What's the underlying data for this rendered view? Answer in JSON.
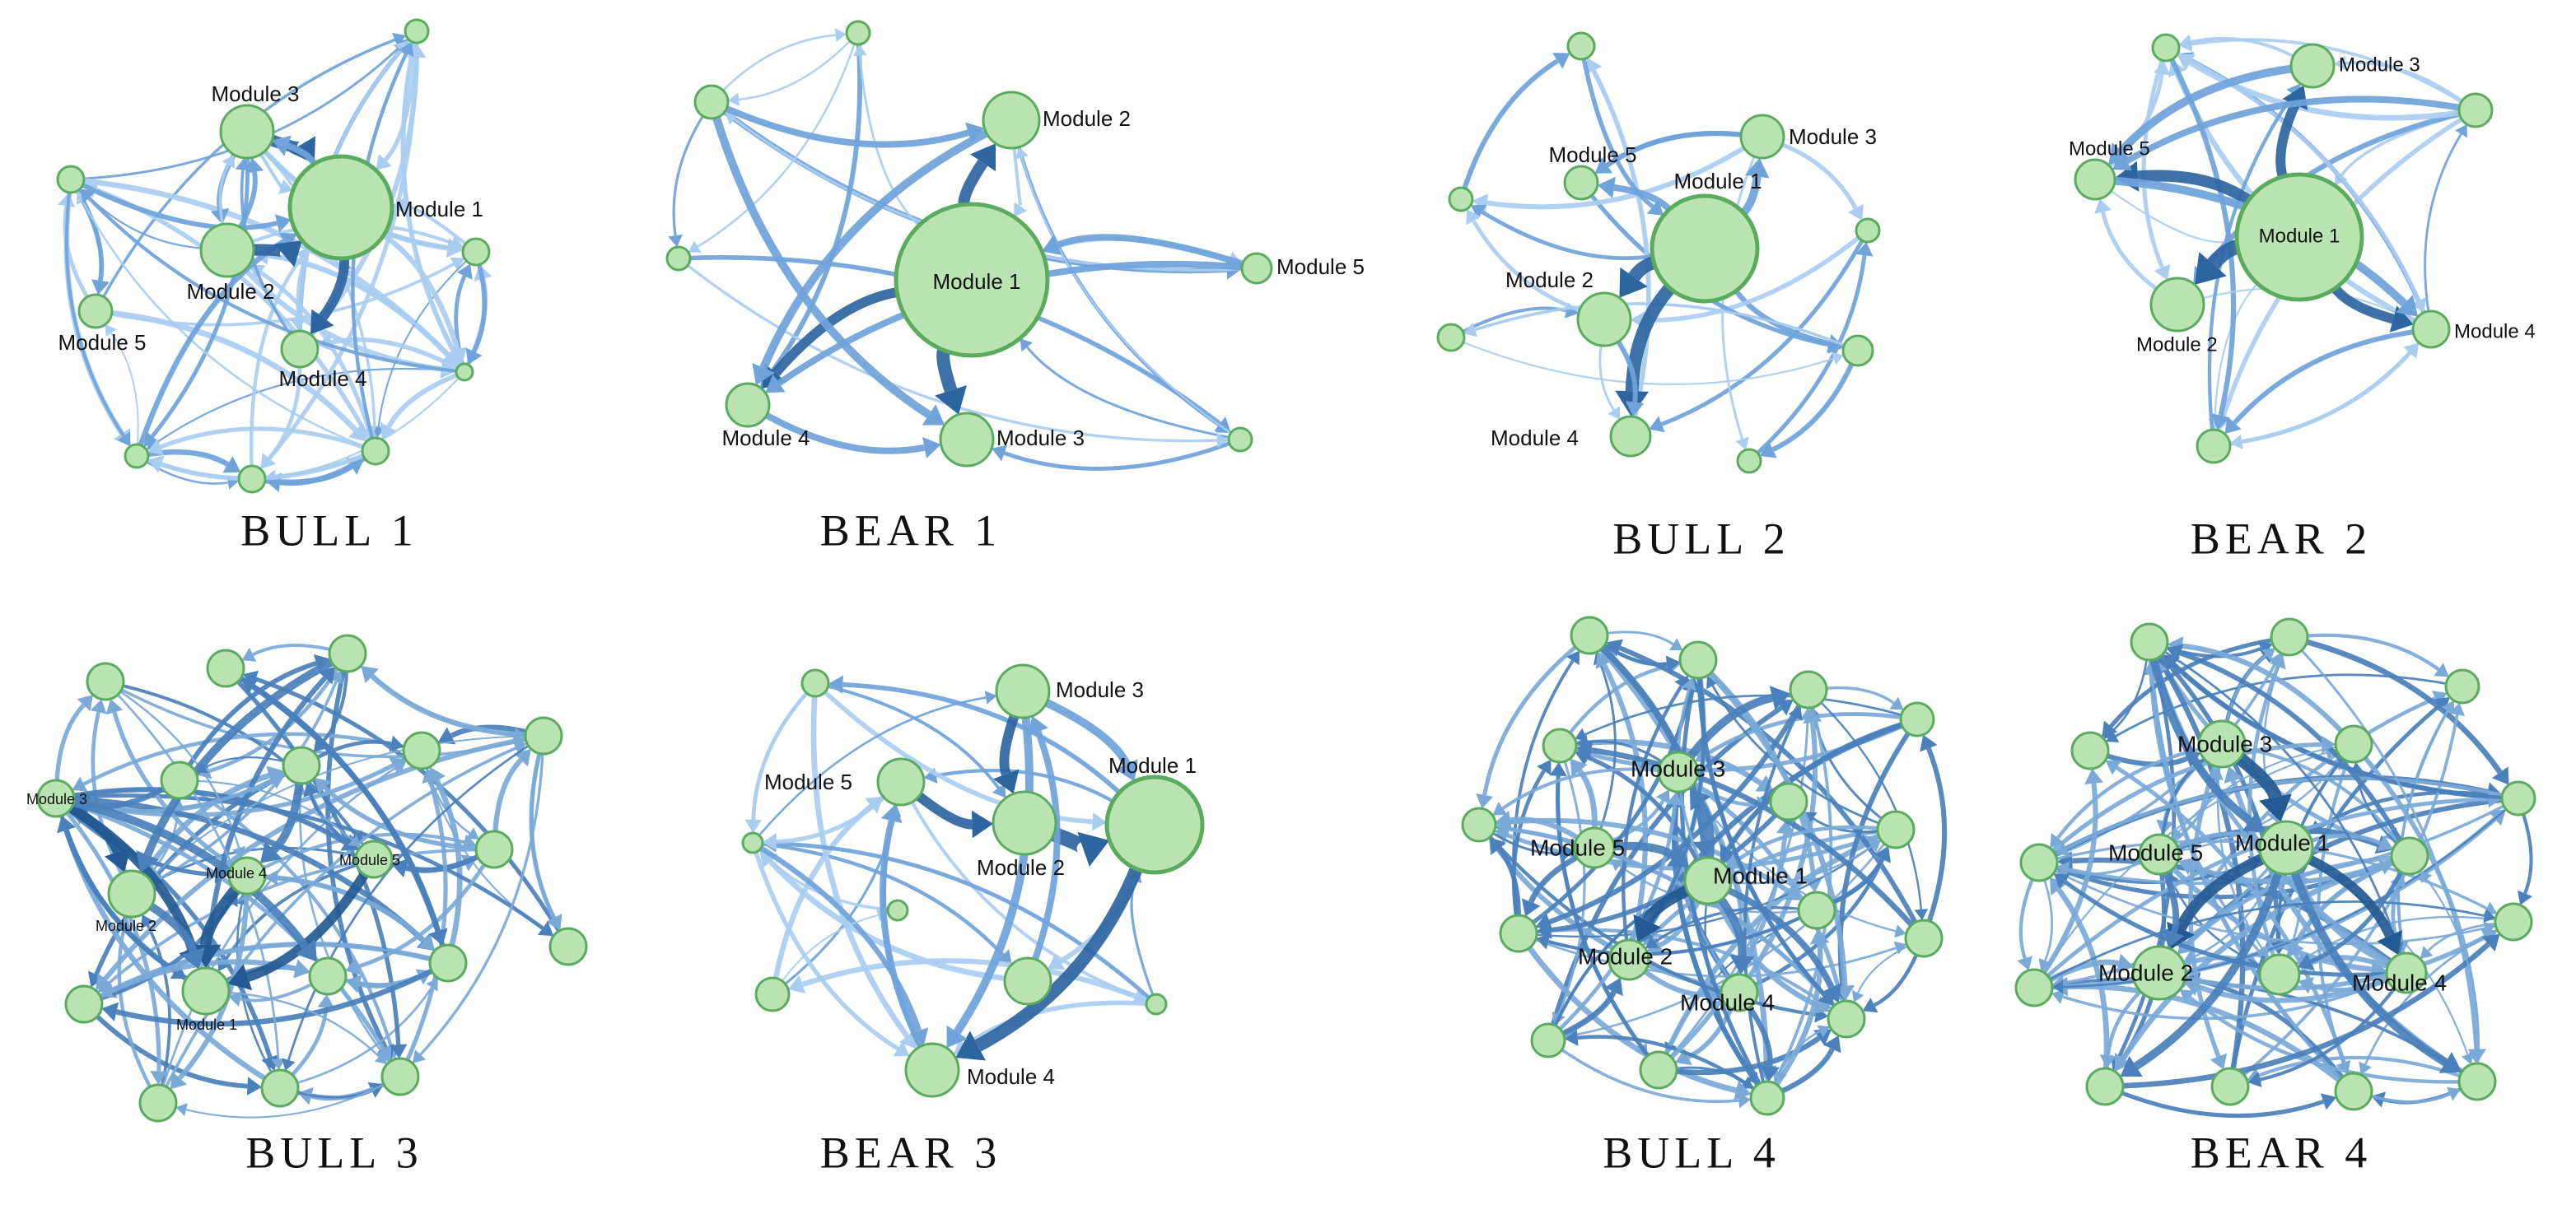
{
  "panels": [
    {
      "title": "BULL 1",
      "labels": [
        "Module 3",
        "Module 1",
        "Module 2",
        "Module 5",
        "Module 4"
      ]
    },
    {
      "title": "BEAR 1",
      "labels": [
        "Module 2",
        "Module 1",
        "Module 5",
        "Module 4",
        "Module 3"
      ]
    },
    {
      "title": "BULL 2",
      "labels": [
        "Module 3",
        "Module 5",
        "Module 1",
        "Module 2",
        "Module 4"
      ]
    },
    {
      "title": "BEAR 2",
      "labels": [
        "Module 3",
        "Module 5",
        "Module 1",
        "Module 2",
        "Module 4"
      ]
    },
    {
      "title": "BULL 3",
      "labels": [
        "Module 3",
        "Module 4",
        "Module 5",
        "Module 2",
        "Module 1"
      ]
    },
    {
      "title": "BEAR 3",
      "labels": [
        "Module 3",
        "Module 5",
        "Module 1",
        "Module 2",
        "Module 4"
      ]
    },
    {
      "title": "BULL 4",
      "labels": [
        "Module 3",
        "Module 5",
        "Module 1",
        "Module 2",
        "Module 4"
      ]
    },
    {
      "title": "BEAR 4",
      "labels": [
        "Module 3",
        "Module 5",
        "Module 1",
        "Module 2",
        "Module 4"
      ]
    }
  ]
}
